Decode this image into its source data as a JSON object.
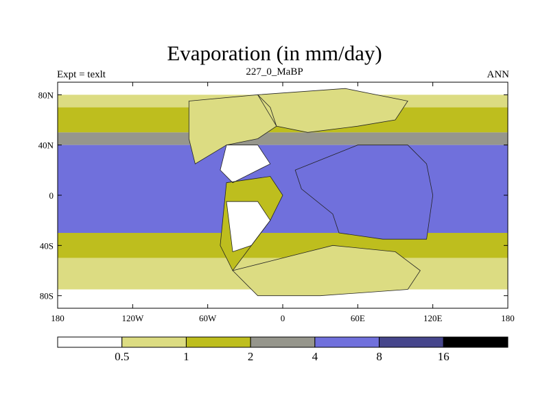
{
  "chart_data": {
    "type": "heatmap",
    "title": "Evaporation (in mm/day)",
    "subtitle_left": "Expt = texlt",
    "subtitle_center": "227_0_MaBP",
    "subtitle_right": "ANN",
    "x_axis": {
      "range": [
        -180,
        180
      ],
      "ticks": [
        {
          "value": -180,
          "label": "180"
        },
        {
          "value": -120,
          "label": "120W"
        },
        {
          "value": -60,
          "label": "60W"
        },
        {
          "value": 0,
          "label": "0"
        },
        {
          "value": 60,
          "label": "60E"
        },
        {
          "value": 120,
          "label": "120E"
        },
        {
          "value": 180,
          "label": "180"
        }
      ]
    },
    "y_axis": {
      "range": [
        -90,
        90
      ],
      "ticks": [
        {
          "value": 80,
          "label": "80N"
        },
        {
          "value": 40,
          "label": "40N"
        },
        {
          "value": 0,
          "label": "0"
        },
        {
          "value": -40,
          "label": "40S"
        },
        {
          "value": -80,
          "label": "80S"
        }
      ]
    },
    "colorbar": {
      "levels": [
        "0.5",
        "1",
        "2",
        "4",
        "8",
        "16"
      ],
      "colors": [
        "#ffffff",
        "#dcdc82",
        "#bebe1e",
        "#96968c",
        "#7070dc",
        "#46468c",
        "#000000"
      ]
    },
    "zonal_bands": [
      {
        "lat": [
          80,
          90
        ],
        "level": 0
      },
      {
        "lat": [
          70,
          80
        ],
        "level": 1
      },
      {
        "lat": [
          50,
          70
        ],
        "level": 2
      },
      {
        "lat": [
          40,
          50
        ],
        "level": 3
      },
      {
        "lat": [
          -30,
          40
        ],
        "level": 4
      },
      {
        "lat": [
          -50,
          -30
        ],
        "level": 2
      },
      {
        "lat": [
          -75,
          -50
        ],
        "level": 1
      },
      {
        "lat": [
          -90,
          -75
        ],
        "level": 0
      }
    ],
    "land_regions": [
      {
        "name": "western-continent-north",
        "level": 1,
        "polygon": [
          [
            -75,
            75
          ],
          [
            -20,
            80
          ],
          [
            -10,
            70
          ],
          [
            -5,
            55
          ],
          [
            -20,
            45
          ],
          [
            -45,
            40
          ],
          [
            -70,
            25
          ],
          [
            -75,
            45
          ]
        ]
      },
      {
        "name": "western-desert-north",
        "level": 0,
        "polygon": [
          [
            -45,
            40
          ],
          [
            -20,
            40
          ],
          [
            -10,
            25
          ],
          [
            -40,
            10
          ],
          [
            -50,
            20
          ]
        ]
      },
      {
        "name": "western-continent-south",
        "level": 2,
        "polygon": [
          [
            -45,
            10
          ],
          [
            -10,
            15
          ],
          [
            0,
            0
          ],
          [
            -10,
            -20
          ],
          [
            -25,
            -40
          ],
          [
            -40,
            -60
          ],
          [
            -50,
            -40
          ]
        ]
      },
      {
        "name": "western-desert-south",
        "level": 0,
        "polygon": [
          [
            -45,
            -5
          ],
          [
            -20,
            -5
          ],
          [
            -10,
            -20
          ],
          [
            -25,
            -40
          ],
          [
            -40,
            -45
          ]
        ]
      },
      {
        "name": "southern-land",
        "level": 1,
        "polygon": [
          [
            -40,
            -60
          ],
          [
            20,
            -45
          ],
          [
            40,
            -40
          ],
          [
            90,
            -45
          ],
          [
            110,
            -60
          ],
          [
            100,
            -75
          ],
          [
            30,
            -80
          ],
          [
            -20,
            -80
          ]
        ]
      },
      {
        "name": "northern-land",
        "level": 1,
        "polygon": [
          [
            -20,
            80
          ],
          [
            50,
            85
          ],
          [
            100,
            75
          ],
          [
            90,
            60
          ],
          [
            60,
            55
          ],
          [
            20,
            50
          ],
          [
            -5,
            55
          ]
        ]
      }
    ],
    "inland_sea": {
      "name": "interior-ocean",
      "level": 4,
      "polygon": [
        [
          10,
          20
        ],
        [
          60,
          40
        ],
        [
          100,
          40
        ],
        [
          115,
          25
        ],
        [
          120,
          0
        ],
        [
          115,
          -35
        ],
        [
          80,
          -35
        ],
        [
          45,
          -30
        ],
        [
          40,
          -15
        ],
        [
          15,
          5
        ]
      ]
    }
  }
}
